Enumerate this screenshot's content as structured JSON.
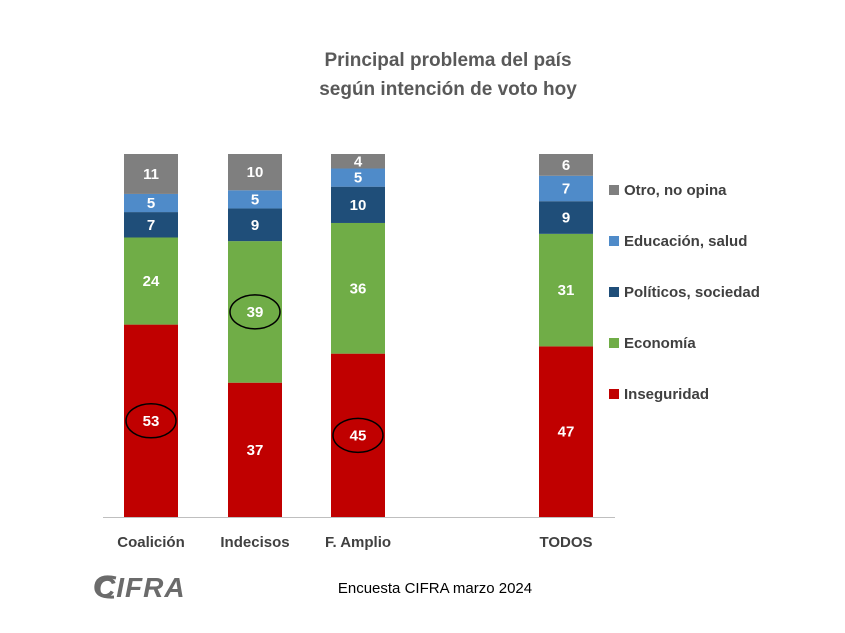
{
  "chart_data": {
    "type": "bar",
    "stacked": true,
    "title": [
      "Principal problema del país",
      "según intención de voto hoy"
    ],
    "categories": [
      "Coalición",
      "Indecisos",
      "F. Amplio",
      "TODOS"
    ],
    "series": [
      {
        "name": "Inseguridad",
        "color": "#c00000",
        "values": [
          53,
          37,
          45,
          47
        ]
      },
      {
        "name": "Economía",
        "color": "#70ad47",
        "values": [
          24,
          39,
          36,
          31
        ]
      },
      {
        "name": "Políticos, sociedad",
        "color": "#1f4e79",
        "values": [
          7,
          9,
          10,
          9
        ]
      },
      {
        "name": "Educación, salud",
        "color": "#4f8bc9",
        "values": [
          5,
          5,
          5,
          7
        ]
      },
      {
        "name": "Otro, no opina",
        "color": "#7f7f7f",
        "values": [
          11,
          10,
          4,
          6
        ]
      }
    ],
    "highlighted": [
      {
        "category": "Coalición",
        "series": "Inseguridad"
      },
      {
        "category": "Indecisos",
        "series": "Economía"
      },
      {
        "category": "F. Amplio",
        "series": "Inseguridad"
      }
    ],
    "ylim": [
      0,
      100
    ],
    "legend": "right",
    "grid": false
  },
  "footer": "Encuesta CIFRA marzo 2024",
  "logo": {
    "text": "CIFRA",
    "icon": "cifra-logo"
  }
}
